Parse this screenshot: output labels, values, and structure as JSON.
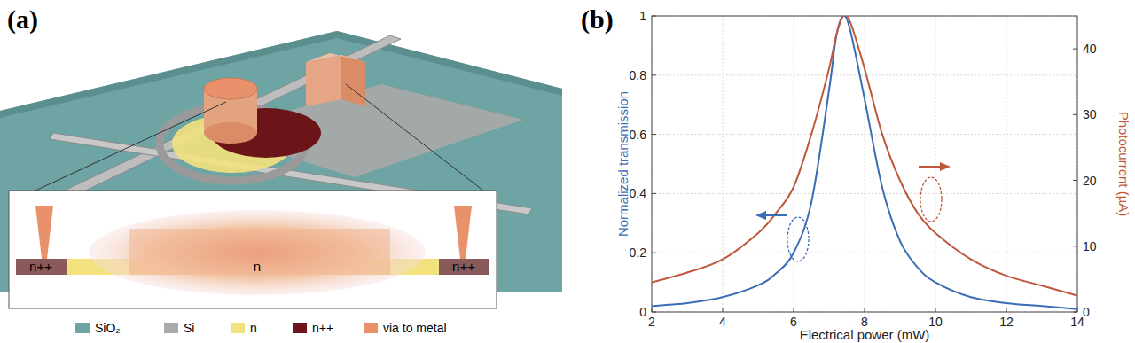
{
  "chart_data": {
    "type": "line",
    "title": "(b)",
    "x_label": "Electrical power (mW)",
    "y_label": "Normalized transmission",
    "y2_label": "Photocurrent (µA)",
    "x": [
      2,
      3,
      4,
      5,
      5.5,
      6,
      6.5,
      7,
      7.2,
      7.4,
      7.6,
      8,
      8.5,
      9,
      9.5,
      10,
      11,
      12,
      13,
      14
    ],
    "series": [
      {
        "color": "#3a6db5",
        "values": [
          0.02,
          0.03,
          0.05,
          0.09,
          0.13,
          0.2,
          0.37,
          0.75,
          0.93,
          1.0,
          0.95,
          0.72,
          0.42,
          0.24,
          0.15,
          0.1,
          0.05,
          0.03,
          0.02,
          0.01
        ]
      },
      {
        "color": "#c0573b",
        "axis": "y2",
        "values": [
          4.5,
          6,
          8,
          12,
          15,
          19,
          27,
          37,
          42,
          45,
          44,
          37,
          27,
          20,
          15,
          12,
          8,
          5.5,
          4,
          2.5
        ]
      }
    ],
    "xlim": [
      2,
      14
    ],
    "xticks": [
      2,
      4,
      6,
      8,
      10,
      12,
      14
    ],
    "ylim": [
      0,
      1
    ],
    "yticks": [
      0,
      0.2,
      0.4,
      0.6,
      0.8,
      1
    ],
    "y2lim": [
      0,
      45
    ],
    "y2ticks": [
      0,
      10,
      20,
      30,
      40
    ],
    "grid": true
  },
  "diagram": {
    "label": "(a)",
    "inset_labels": [
      "n++",
      "n",
      "n++"
    ],
    "legend": [
      {
        "label": "SiO₂",
        "color": "#6fa4a4"
      },
      {
        "label": "Si",
        "color": "#a9a9a9"
      },
      {
        "label": "n",
        "color": "#f2e27e"
      },
      {
        "label": "n++",
        "color": "#6b1518"
      },
      {
        "label": "via to metal",
        "color": "#e9916b"
      }
    ]
  }
}
